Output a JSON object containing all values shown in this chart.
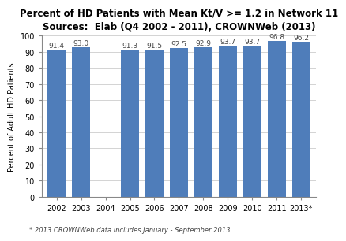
{
  "title_line1": "Percent of HD Patients with Mean Kt/V >= 1.2 in Network 11",
  "title_line2": "Sources:  Elab (Q4 2002 - 2011), CROWNWeb (2013)",
  "years": [
    "2002",
    "2003",
    "2004",
    "2005",
    "2006",
    "2007",
    "2008",
    "2009",
    "2010",
    "2011",
    "2013*"
  ],
  "values": [
    91.4,
    93.0,
    null,
    91.3,
    91.5,
    92.5,
    92.9,
    93.7,
    93.7,
    96.8,
    96.2
  ],
  "bar_color": "#4f7dba",
  "ylabel": "Percent of Adult HD Patients",
  "ylim": [
    0,
    100
  ],
  "yticks": [
    0,
    10,
    20,
    30,
    40,
    50,
    60,
    70,
    80,
    90,
    100
  ],
  "footnote": "* 2013 CROWNWeb data includes January - September 2013",
  "label_fontsize": 6.5,
  "title_fontsize": 8.5,
  "subtitle_fontsize": 7.5,
  "ylabel_fontsize": 7,
  "xtick_fontsize": 7,
  "ytick_fontsize": 7,
  "footnote_fontsize": 6
}
